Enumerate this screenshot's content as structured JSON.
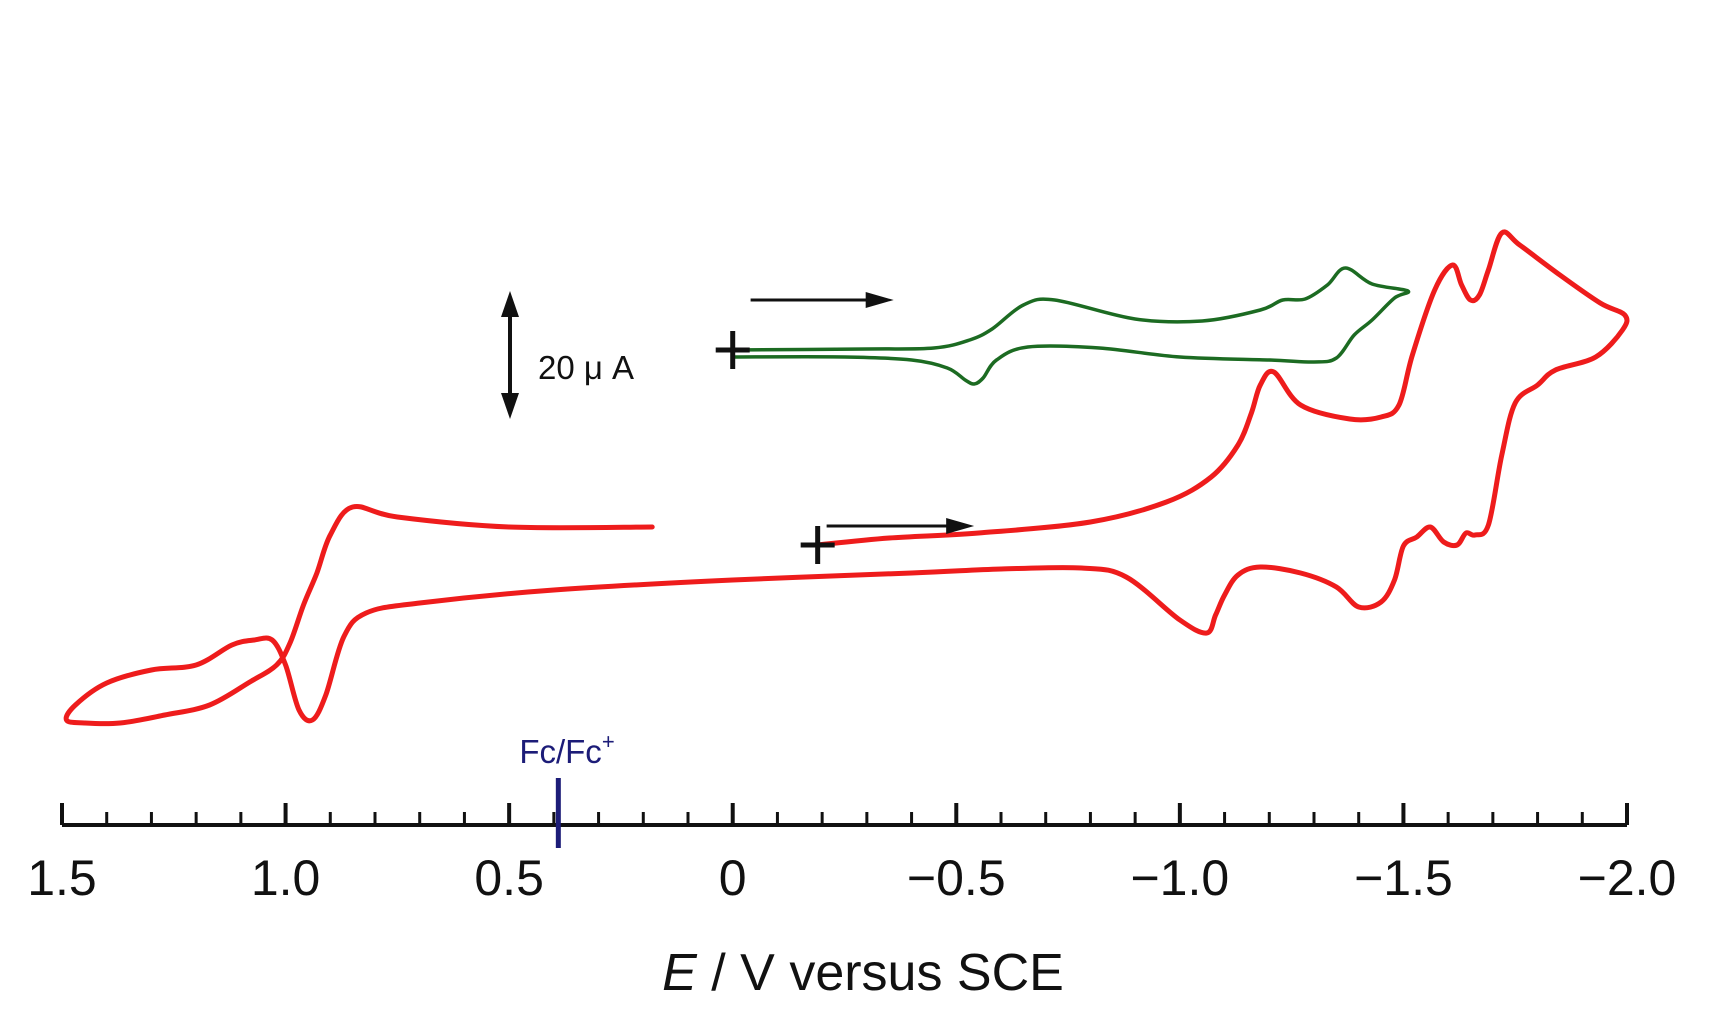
{
  "colors": {
    "red_trace": "#ee1c1c",
    "green_trace": "#1c6b22",
    "axis": "#111111",
    "reference": "#1c1c78",
    "background": "#ffffff"
  },
  "chart_data": {
    "type": "line",
    "title": "",
    "xlabel_italic": "E",
    "xlabel_rest": " / V versus SCE",
    "xlim": [
      1.5,
      -2.0
    ],
    "x_direction": "reversed",
    "x_tick_values": [
      1.5,
      1.0,
      0.5,
      0,
      -0.5,
      -1.0,
      -1.5,
      -2.0
    ],
    "x_tick_labels": [
      "1.5",
      "1.0",
      "0.5",
      "0",
      "−0.5",
      "−1.0",
      "−1.5",
      "−2.0"
    ],
    "minor_tick_step": 0.1,
    "y_unit": "µA",
    "y_axis_shown": false,
    "scale_bar": {
      "label": "20 μ A",
      "value": 20,
      "units": "µA"
    },
    "reference": {
      "label": "Fc/Fc",
      "superscript": "+",
      "x": 0.39
    },
    "series": [
      {
        "name": "red-cv",
        "color": "#ee1c1c",
        "start": {
          "x": -0.19,
          "y": 80
        },
        "scan_arrow": {
          "from": -0.21,
          "to": -0.54,
          "y": 99
        },
        "x": [
          -0.19,
          -0.35,
          -0.55,
          -0.8,
          -0.97,
          -1.07,
          -1.13,
          -1.16,
          -1.18,
          -1.21,
          -1.27,
          -1.38,
          -1.45,
          -1.49,
          -1.52,
          -1.57,
          -1.61,
          -1.63,
          -1.65,
          -1.67,
          -1.69,
          -1.72,
          -1.76,
          -1.85,
          -1.94,
          -1.995,
          -1.99,
          -1.93,
          -1.84,
          -1.8,
          -1.75,
          -1.72,
          -1.69,
          -1.66,
          -1.64,
          -1.62,
          -1.59,
          -1.56,
          -1.53,
          -1.5,
          -1.48,
          -1.45,
          -1.4,
          -1.35,
          -1.27,
          -1.18,
          -1.13,
          -1.1,
          -1.08,
          -1.06,
          -1.0,
          -0.88,
          -0.78,
          -0.6,
          -0.4,
          0.0,
          0.4,
          0.7,
          0.82,
          0.87,
          0.91,
          0.94,
          0.97,
          1.0,
          1.03,
          1.07,
          1.12,
          1.2,
          1.3,
          1.4,
          1.47,
          1.49,
          1.45,
          1.37,
          1.27,
          1.17,
          1.08,
          1.02,
          0.99,
          0.96,
          0.93,
          0.9,
          0.85,
          0.75,
          0.5,
          0.18
        ],
        "y": [
          80,
          87,
          92,
          103,
          123,
          148,
          180,
          212,
          240,
          253,
          220,
          206,
          208,
          220,
          270,
          335,
          360,
          340,
          325,
          330,
          355,
          392,
          380,
          350,
          322,
          310,
          295,
          268,
          255,
          240,
          222,
          170,
          100,
          90,
          92,
          80,
          83,
          98,
          88,
          79,
          45,
          23,
          18,
          38,
          52,
          58,
          50,
          30,
          10,
          -8,
          5,
          48,
          57,
          56,
          52,
          45,
          35,
          22,
          12,
          -12,
          -70,
          -95,
          -85,
          -40,
          -15,
          -15,
          -20,
          -40,
          -45,
          -58,
          -80,
          -95,
          -98,
          -98,
          -90,
          -80,
          -57,
          -40,
          -18,
          20,
          52,
          90,
          118,
          108,
          98,
          98
        ]
      },
      {
        "name": "green-cv",
        "color": "#1c6b22",
        "start": {
          "x": 0.0,
          "y": 275
        },
        "scan_arrow": {
          "from": -0.04,
          "to": -0.36,
          "y": 325
        },
        "x": [
          0.0,
          -0.3,
          -0.45,
          -0.53,
          -0.58,
          -0.65,
          -0.72,
          -0.9,
          -1.05,
          -1.18,
          -1.23,
          -1.28,
          -1.33,
          -1.37,
          -1.43,
          -1.51,
          -1.48,
          -1.43,
          -1.39,
          -1.35,
          -1.3,
          -1.2,
          -1.0,
          -0.82,
          -0.66,
          -0.59,
          -0.56,
          -0.54,
          -0.52,
          -0.48,
          -0.4,
          -0.25,
          0.0
        ],
        "y": [
          275,
          276,
          277,
          285,
          296,
          320,
          325,
          306,
          304,
          315,
          325,
          326,
          340,
          357,
          341,
          334,
          327,
          305,
          290,
          267,
          263,
          265,
          268,
          277,
          278,
          265,
          247,
          241,
          245,
          257,
          265,
          268,
          268
        ]
      }
    ]
  }
}
